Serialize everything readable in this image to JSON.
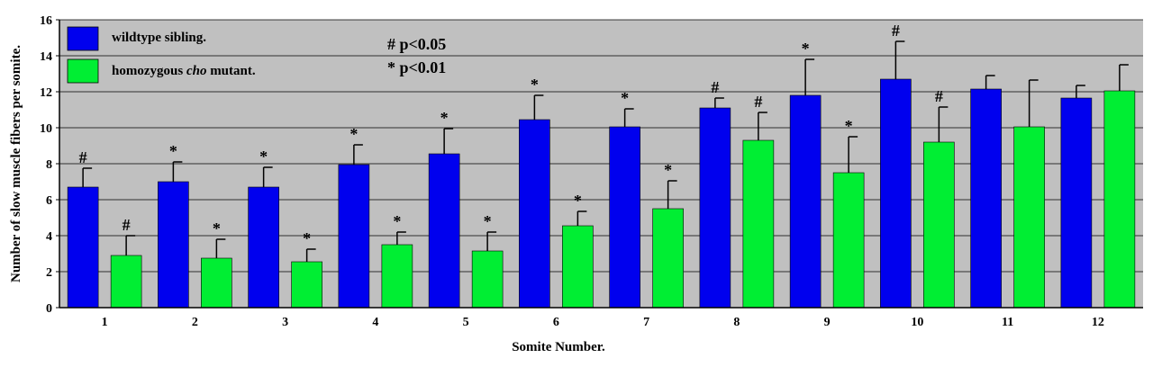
{
  "chart_data": {
    "type": "bar",
    "xlabel": "Somite Number.",
    "ylabel": "Number of slow muscle fibers per somite.",
    "ylim": [
      0,
      16
    ],
    "yticks": [
      0,
      2,
      4,
      6,
      8,
      10,
      12,
      14,
      16
    ],
    "grid": true,
    "legend_position": "top-left",
    "categories": [
      "1",
      "2",
      "3",
      "4",
      "5",
      "6",
      "7",
      "8",
      "9",
      "10",
      "11",
      "12"
    ],
    "series": [
      {
        "name": "wildtype sibling.",
        "name_parts": [
          "wildtype sibling."
        ],
        "color": "#0000ee",
        "values": [
          6.7,
          7.0,
          6.7,
          7.95,
          8.55,
          10.45,
          10.05,
          11.1,
          11.8,
          12.7,
          12.15,
          11.65
        ],
        "errors": [
          1.05,
          1.1,
          1.1,
          1.1,
          1.4,
          1.35,
          1.0,
          0.55,
          2.0,
          2.1,
          0.75,
          0.7
        ],
        "significance": [
          "#",
          "*",
          "*",
          "*",
          "*",
          "*",
          "*",
          "#",
          "*",
          "#",
          "",
          ""
        ]
      },
      {
        "name": "homozygous cho mutant.",
        "name_parts": [
          "homozygous ",
          "cho",
          " mutant."
        ],
        "color": "#00ee33",
        "values": [
          2.9,
          2.75,
          2.55,
          3.5,
          3.15,
          4.55,
          5.5,
          9.3,
          7.5,
          9.2,
          10.05,
          12.05
        ],
        "errors": [
          1.1,
          1.05,
          0.7,
          0.7,
          1.05,
          0.8,
          1.55,
          1.55,
          2.0,
          1.95,
          2.6,
          1.45
        ],
        "significance": [
          "#",
          "*",
          "*",
          "*",
          "*",
          "*",
          "*",
          "#",
          "*",
          "#",
          "",
          ""
        ]
      }
    ],
    "annotations": [
      "# p<0.05",
      "* p<0.01"
    ]
  }
}
